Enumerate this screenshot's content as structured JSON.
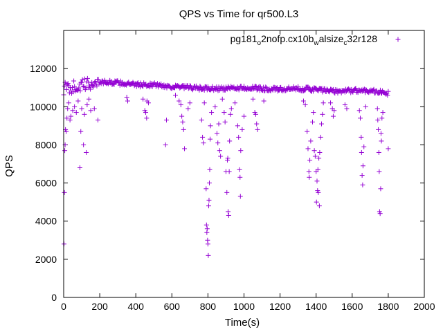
{
  "chart_data": {
    "type": "scatter",
    "title": "QPS vs Time for qr500.L3",
    "xlabel": "Time(s)",
    "ylabel": "QPS",
    "xlim": [
      0,
      2000
    ],
    "ylim": [
      0,
      14000
    ],
    "xticks": [
      0,
      200,
      400,
      600,
      800,
      1000,
      1200,
      1400,
      1600,
      1800,
      2000
    ],
    "yticks": [
      0,
      2000,
      4000,
      6000,
      8000,
      10000,
      12000
    ],
    "xtick_labels": [
      "0",
      "200",
      "400",
      "600",
      "800",
      "1000",
      "1200",
      "1400",
      "1600",
      "1800",
      "2000"
    ],
    "ytick_labels": [
      "0",
      "2000",
      "4000",
      "6000",
      "8000",
      "10000",
      "12000"
    ],
    "legend_position": "top-right",
    "series": [
      {
        "name": "pg181_o2nofp.cx10b_walsize_c32r128",
        "legend_parts": [
          {
            "text": "pg181",
            "shift": "base"
          },
          {
            "text": "o",
            "shift": "sub"
          },
          {
            "text": "2nofp.cx10b",
            "shift": "base"
          },
          {
            "text": "w",
            "shift": "sub"
          },
          {
            "text": "alsize",
            "shift": "base"
          },
          {
            "text": "c",
            "shift": "sub"
          },
          {
            "text": "32r128",
            "shift": "base"
          }
        ],
        "color": "#9400d3",
        "marker": "plus",
        "baseline": [
          [
            0,
            10950
          ],
          [
            100,
            11100
          ],
          [
            200,
            11300
          ],
          [
            300,
            11250
          ],
          [
            400,
            11150
          ],
          [
            500,
            11150
          ],
          [
            600,
            11050
          ],
          [
            700,
            11000
          ],
          [
            800,
            10950
          ],
          [
            900,
            10950
          ],
          [
            1000,
            11000
          ],
          [
            1100,
            10950
          ],
          [
            1200,
            10900
          ],
          [
            1300,
            10950
          ],
          [
            1400,
            10900
          ],
          [
            1500,
            10800
          ],
          [
            1600,
            10850
          ],
          [
            1700,
            10850
          ],
          [
            1800,
            10700
          ]
        ],
        "outliers": [
          [
            2,
            2800
          ],
          [
            4,
            5500
          ],
          [
            6,
            7700
          ],
          [
            8,
            8000
          ],
          [
            10,
            8800
          ],
          [
            14,
            8700
          ],
          [
            18,
            9400
          ],
          [
            22,
            9900
          ],
          [
            28,
            10200
          ],
          [
            35,
            9300
          ],
          [
            40,
            9500
          ],
          [
            50,
            9800
          ],
          [
            60,
            10000
          ],
          [
            70,
            9700
          ],
          [
            80,
            10300
          ],
          [
            90,
            6800
          ],
          [
            95,
            8700
          ],
          [
            100,
            9900
          ],
          [
            110,
            8000
          ],
          [
            115,
            9600
          ],
          [
            125,
            7600
          ],
          [
            130,
            10100
          ],
          [
            140,
            10400
          ],
          [
            150,
            9800
          ],
          [
            170,
            9900
          ],
          [
            190,
            9300
          ],
          [
            350,
            10500
          ],
          [
            355,
            10300
          ],
          [
            440,
            10400
          ],
          [
            450,
            9800
          ],
          [
            455,
            9700
          ],
          [
            460,
            9400
          ],
          [
            462,
            10300
          ],
          [
            470,
            10200
          ],
          [
            565,
            8000
          ],
          [
            570,
            9300
          ],
          [
            620,
            10600
          ],
          [
            640,
            10300
          ],
          [
            650,
            10100
          ],
          [
            655,
            9500
          ],
          [
            660,
            9200
          ],
          [
            665,
            8800
          ],
          [
            670,
            7800
          ],
          [
            690,
            9900
          ],
          [
            700,
            10200
          ],
          [
            765,
            9300
          ],
          [
            770,
            8400
          ],
          [
            775,
            8100
          ],
          [
            780,
            10200
          ],
          [
            790,
            5700
          ],
          [
            792,
            3800
          ],
          [
            794,
            3400
          ],
          [
            796,
            3600
          ],
          [
            798,
            3000
          ],
          [
            800,
            2800
          ],
          [
            802,
            2200
          ],
          [
            804,
            4800
          ],
          [
            806,
            5100
          ],
          [
            808,
            6000
          ],
          [
            810,
            6700
          ],
          [
            812,
            8300
          ],
          [
            814,
            9000
          ],
          [
            820,
            9700
          ],
          [
            840,
            10000
          ],
          [
            850,
            8600
          ],
          [
            855,
            8100
          ],
          [
            860,
            9100
          ],
          [
            865,
            7700
          ],
          [
            870,
            7400
          ],
          [
            880,
            10400
          ],
          [
            890,
            9700
          ],
          [
            895,
            9200
          ],
          [
            900,
            6600
          ],
          [
            905,
            5500
          ],
          [
            908,
            7200
          ],
          [
            910,
            7300
          ],
          [
            912,
            4500
          ],
          [
            915,
            4300
          ],
          [
            918,
            6600
          ],
          [
            920,
            8200
          ],
          [
            925,
            9600
          ],
          [
            930,
            9900
          ],
          [
            950,
            10200
          ],
          [
            965,
            9000
          ],
          [
            970,
            8400
          ],
          [
            975,
            6700
          ],
          [
            978,
            6300
          ],
          [
            980,
            5300
          ],
          [
            982,
            7700
          ],
          [
            990,
            8800
          ],
          [
            1000,
            9500
          ],
          [
            1050,
            10400
          ],
          [
            1060,
            9700
          ],
          [
            1065,
            9600
          ],
          [
            1070,
            9100
          ],
          [
            1075,
            8800
          ],
          [
            1110,
            10300
          ],
          [
            1330,
            10300
          ],
          [
            1340,
            10100
          ],
          [
            1350,
            8700
          ],
          [
            1355,
            7800
          ],
          [
            1360,
            6600
          ],
          [
            1362,
            6300
          ],
          [
            1365,
            7200
          ],
          [
            1370,
            8200
          ],
          [
            1380,
            9200
          ],
          [
            1385,
            9700
          ],
          [
            1390,
            7700
          ],
          [
            1395,
            7400
          ],
          [
            1400,
            6600
          ],
          [
            1402,
            5000
          ],
          [
            1405,
            6100
          ],
          [
            1408,
            5600
          ],
          [
            1410,
            6700
          ],
          [
            1412,
            5500
          ],
          [
            1415,
            7300
          ],
          [
            1418,
            4800
          ],
          [
            1420,
            7600
          ],
          [
            1425,
            8400
          ],
          [
            1430,
            9100
          ],
          [
            1435,
            9600
          ],
          [
            1440,
            10200
          ],
          [
            1480,
            10200
          ],
          [
            1490,
            9900
          ],
          [
            1495,
            9500
          ],
          [
            1500,
            9800
          ],
          [
            1560,
            10100
          ],
          [
            1570,
            9900
          ],
          [
            1640,
            9800
          ],
          [
            1645,
            9400
          ],
          [
            1650,
            8400
          ],
          [
            1652,
            7600
          ],
          [
            1655,
            6400
          ],
          [
            1658,
            5900
          ],
          [
            1660,
            6900
          ],
          [
            1665,
            7900
          ],
          [
            1675,
            10000
          ],
          [
            1740,
            9900
          ],
          [
            1742,
            9300
          ],
          [
            1745,
            8800
          ],
          [
            1748,
            7600
          ],
          [
            1750,
            6600
          ],
          [
            1752,
            4500
          ],
          [
            1755,
            4400
          ],
          [
            1758,
            5700
          ],
          [
            1760,
            8600
          ],
          [
            1762,
            8200
          ],
          [
            1765,
            9400
          ],
          [
            1770,
            9700
          ],
          [
            1800,
            7800
          ]
        ]
      }
    ]
  }
}
